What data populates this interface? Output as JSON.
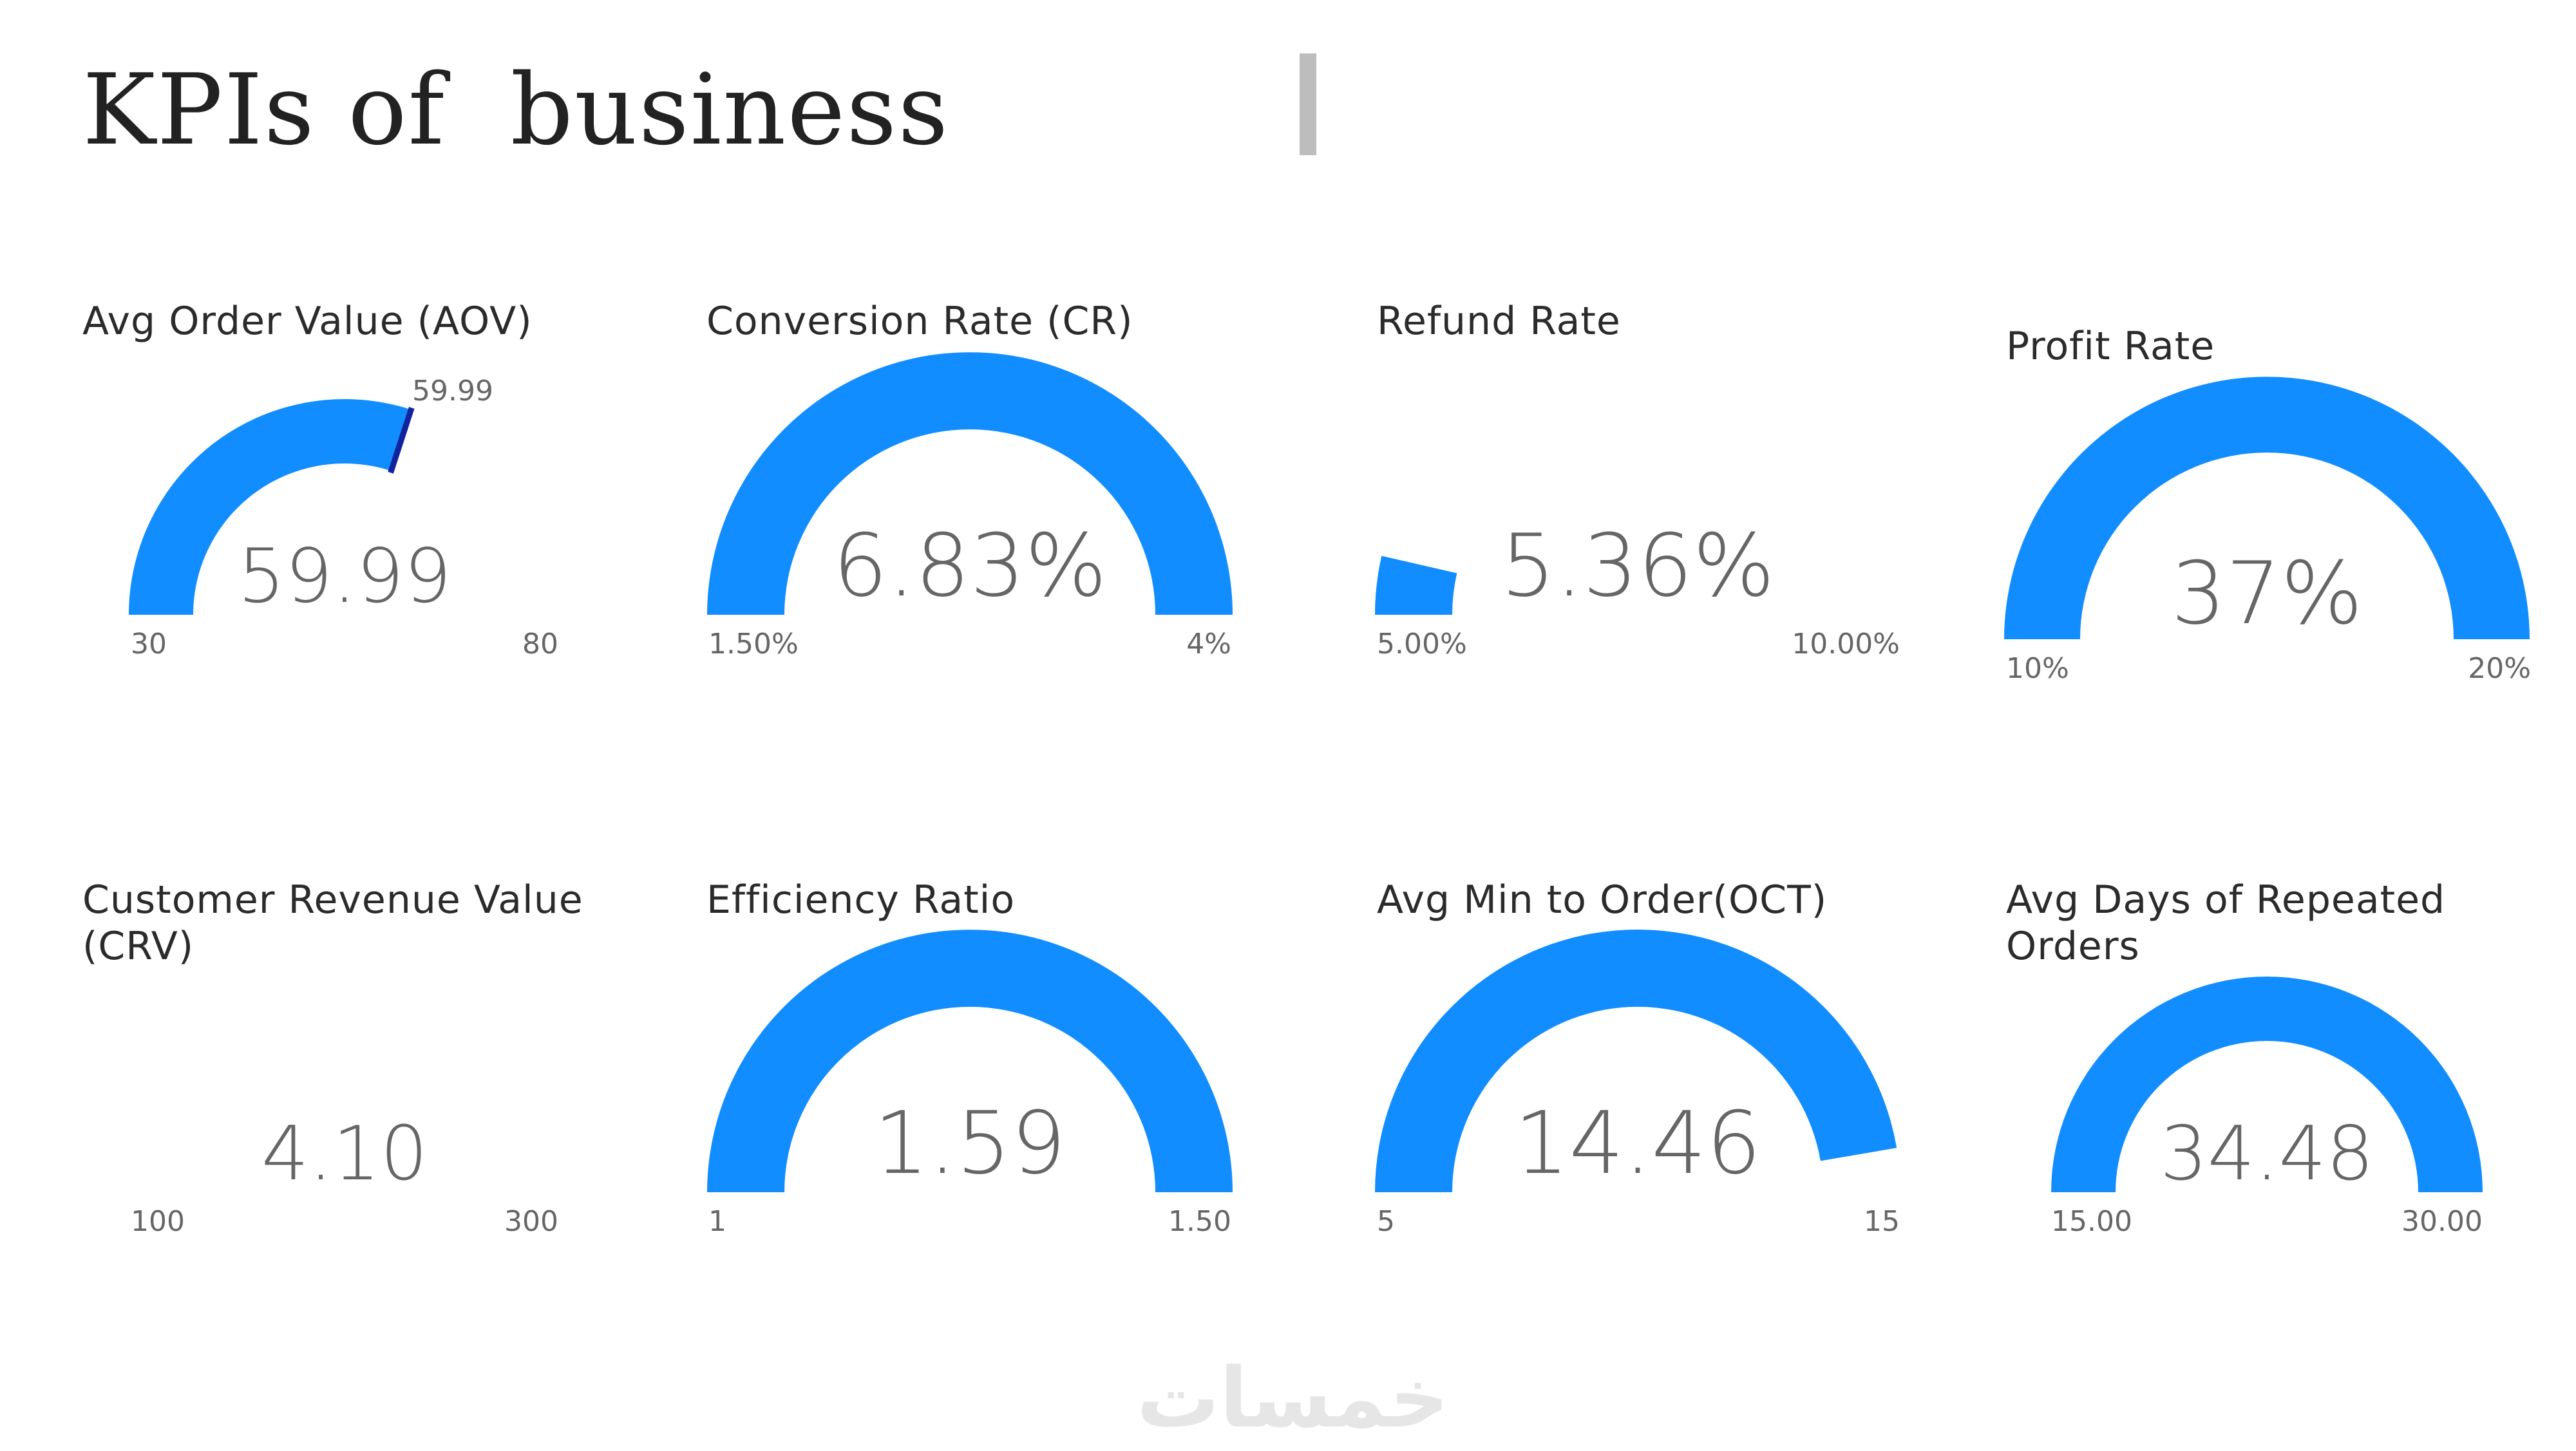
{
  "page": {
    "title": "KPIs of  business"
  },
  "colors": {
    "gauge_fill": "#118dff",
    "target_marker": "#12239e",
    "text": "#666666"
  },
  "gauges": [
    {
      "title": "Avg Order Value (AOV)",
      "value_label": "59.99",
      "value": 59.99,
      "min": 30,
      "max": 80,
      "min_label": "30",
      "max_label": "80",
      "target": 59.99,
      "target_label": "59.99"
    },
    {
      "title": "Conversion Rate (CR)",
      "value_label": "6.83%",
      "value": 6.83,
      "min": 1.5,
      "max": 4,
      "min_label": "1.50%",
      "max_label": "4%"
    },
    {
      "title": "Refund Rate",
      "value_label": "5.36%",
      "value": 5.36,
      "min": 5,
      "max": 10,
      "min_label": "5.00%",
      "max_label": "10.00%"
    },
    {
      "title": "Profit Rate",
      "value_label": "37%",
      "value": 37,
      "min": 10,
      "max": 20,
      "min_label": "10%",
      "max_label": "20%"
    },
    {
      "title": "Customer Revenue Value\n(CRV)",
      "value_label": "4.10",
      "value": 4.1,
      "min": 100,
      "max": 300,
      "min_label": "100",
      "max_label": "300"
    },
    {
      "title": "Efficiency Ratio",
      "value_label": "1.59",
      "value": 1.59,
      "min": 1,
      "max": 1.5,
      "min_label": "1",
      "max_label": "1.50"
    },
    {
      "title": "Avg Min to Order(OCT)",
      "value_label": "14.46",
      "value": 14.46,
      "min": 5,
      "max": 15,
      "min_label": "5",
      "max_label": "15"
    },
    {
      "title": "Avg Days of Repeated\nOrders",
      "value_label": "34.48",
      "value": 34.48,
      "min": 15,
      "max": 30,
      "min_label": "15.00",
      "max_label": "30.00"
    }
  ],
  "watermark": {
    "text": "خمسات"
  }
}
